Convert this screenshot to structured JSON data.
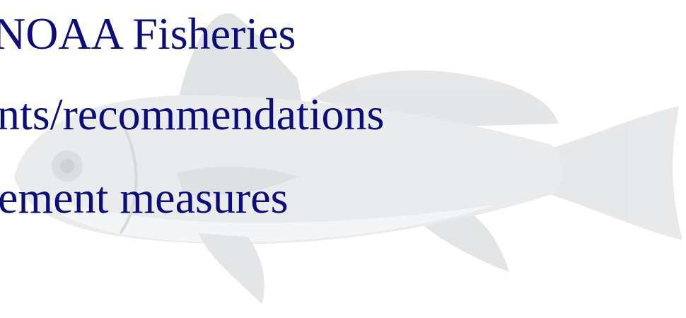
{
  "lines": [
    "NOAA Fisheries",
    "nts/recommendations",
    "ement measures"
  ]
}
